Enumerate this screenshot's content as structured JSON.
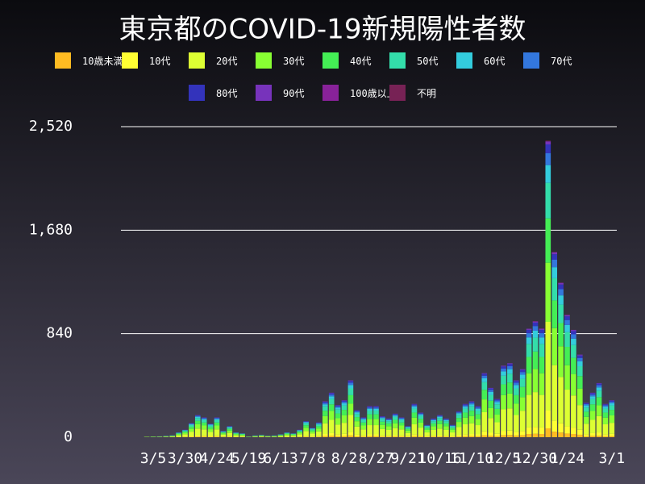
{
  "chart_data": {
    "type": "stacked_bar",
    "title": "東京都のCOVID-19新規陽性者数",
    "categories": [
      null,
      "3/5",
      null,
      null,
      null,
      null,
      "3/30",
      null,
      null,
      null,
      null,
      "4/24",
      null,
      null,
      null,
      null,
      "5/19",
      null,
      null,
      null,
      null,
      "6/13",
      null,
      null,
      null,
      null,
      "7/8",
      null,
      null,
      null,
      null,
      "8/2",
      null,
      null,
      null,
      null,
      "8/27",
      null,
      null,
      null,
      null,
      "9/21",
      null,
      null,
      null,
      null,
      "10/16",
      null,
      null,
      null,
      null,
      "11/10",
      null,
      null,
      null,
      null,
      "12/5",
      null,
      null,
      null,
      null,
      "12/30",
      null,
      null,
      null,
      null,
      "1/24",
      null,
      null,
      null,
      null,
      null,
      null,
      "3/1"
    ],
    "ylim": [
      0,
      2520
    ],
    "yticks": [
      0,
      840,
      {
        "value": 1680,
        "label": "1,680"
      },
      {
        "value": 2520,
        "label": "2,520"
      }
    ],
    "grid": true,
    "series": [
      {
        "name": "10歳未満",
        "color": "#ffbb22",
        "values": [
          0,
          0,
          0,
          0,
          0,
          1,
          2,
          3,
          5,
          5,
          3,
          5,
          2,
          3,
          1,
          1,
          0,
          0,
          1,
          0,
          0,
          1,
          1,
          1,
          2,
          4,
          2,
          4,
          9,
          11,
          8,
          9,
          14,
          7,
          5,
          8,
          8,
          5,
          5,
          6,
          5,
          3,
          8,
          6,
          3,
          5,
          5,
          5,
          3,
          6,
          8,
          9,
          8,
          16,
          12,
          9,
          17,
          18,
          14,
          17,
          26,
          28,
          26,
          72,
          45,
          38,
          30,
          26,
          20,
          8,
          11,
          13,
          8,
          9
        ]
      },
      {
        "name": "10代",
        "color": "#ffff33",
        "values": [
          0,
          0,
          1,
          1,
          1,
          2,
          4,
          7,
          11,
          10,
          7,
          10,
          3,
          5,
          2,
          2,
          0,
          1,
          1,
          1,
          1,
          1,
          2,
          2,
          4,
          8,
          5,
          7,
          17,
          22,
          16,
          18,
          28,
          13,
          10,
          15,
          15,
          10,
          9,
          11,
          10,
          5,
          16,
          12,
          6,
          9,
          11,
          9,
          6,
          13,
          16,
          17,
          15,
          31,
          24,
          19,
          35,
          36,
          28,
          33,
          53,
          56,
          53,
          144,
          90,
          75,
          59,
          52,
          40,
          17,
          22,
          26,
          16,
          18
        ]
      },
      {
        "name": "20代",
        "color": "#ddff33",
        "values": [
          2,
          2,
          2,
          3,
          5,
          12,
          18,
          35,
          54,
          48,
          33,
          48,
          15,
          27,
          12,
          9,
          2,
          4,
          6,
          4,
          4,
          7,
          12,
          9,
          18,
          39,
          23,
          36,
          87,
          108,
          78,
          90,
          138,
          66,
          48,
          75,
          75,
          51,
          45,
          57,
          48,
          27,
          81,
          60,
          30,
          45,
          54,
          45,
          30,
          63,
          81,
          87,
          75,
          156,
          120,
          93,
          174,
          180,
          138,
          165,
          264,
          282,
          264,
          720,
          450,
          375,
          297,
          261,
          201,
          84,
          108,
          132,
          81,
          90
        ]
      },
      {
        "name": "30代",
        "color": "#88ff33",
        "values": [
          1,
          2,
          1,
          2,
          3,
          8,
          12,
          23,
          36,
          32,
          22,
          32,
          10,
          18,
          8,
          6,
          1,
          3,
          4,
          2,
          3,
          5,
          8,
          6,
          12,
          26,
          15,
          24,
          58,
          72,
          52,
          60,
          92,
          44,
          32,
          50,
          50,
          34,
          30,
          38,
          32,
          18,
          54,
          40,
          20,
          30,
          36,
          30,
          20,
          42,
          54,
          58,
          50,
          104,
          80,
          62,
          116,
          120,
          92,
          110,
          176,
          188,
          176,
          480,
          300,
          250,
          198,
          174,
          134,
          56,
          72,
          88,
          54,
          60
        ]
      },
      {
        "name": "40代",
        "color": "#44ee55",
        "values": [
          1,
          1,
          1,
          2,
          2,
          6,
          9,
          17,
          27,
          24,
          17,
          24,
          8,
          14,
          6,
          5,
          1,
          2,
          3,
          2,
          2,
          4,
          6,
          5,
          9,
          20,
          11,
          18,
          44,
          54,
          39,
          45,
          69,
          33,
          24,
          38,
          38,
          26,
          23,
          29,
          24,
          14,
          41,
          30,
          15,
          23,
          27,
          23,
          15,
          32,
          41,
          44,
          38,
          78,
          60,
          47,
          87,
          90,
          69,
          83,
          132,
          141,
          132,
          360,
          225,
          188,
          149,
          131,
          101,
          42,
          54,
          66,
          41,
          45
        ]
      },
      {
        "name": "50代",
        "color": "#33ddaa",
        "values": [
          0,
          1,
          1,
          1,
          2,
          5,
          7,
          14,
          22,
          19,
          13,
          19,
          6,
          11,
          5,
          4,
          1,
          2,
          2,
          1,
          2,
          3,
          5,
          4,
          7,
          16,
          9,
          14,
          35,
          43,
          31,
          36,
          55,
          26,
          19,
          30,
          30,
          20,
          18,
          23,
          19,
          11,
          32,
          24,
          12,
          18,
          22,
          18,
          12,
          25,
          32,
          35,
          30,
          62,
          48,
          37,
          70,
          72,
          55,
          66,
          106,
          113,
          106,
          288,
          180,
          150,
          119,
          104,
          80,
          34,
          43,
          53,
          32,
          36
        ]
      },
      {
        "name": "60代",
        "color": "#33ccdd",
        "values": [
          0,
          0,
          1,
          1,
          1,
          2,
          4,
          7,
          11,
          10,
          7,
          10,
          3,
          5,
          2,
          2,
          0,
          1,
          1,
          1,
          1,
          1,
          2,
          2,
          4,
          8,
          5,
          7,
          17,
          22,
          16,
          18,
          28,
          13,
          10,
          15,
          15,
          10,
          9,
          11,
          10,
          5,
          16,
          12,
          6,
          9,
          11,
          9,
          6,
          13,
          16,
          17,
          15,
          31,
          24,
          19,
          35,
          36,
          28,
          33,
          53,
          56,
          53,
          144,
          90,
          75,
          59,
          52,
          40,
          17,
          22,
          26,
          16,
          18
        ]
      },
      {
        "name": "70代",
        "color": "#3377dd",
        "values": [
          0,
          0,
          0,
          1,
          1,
          2,
          2,
          5,
          7,
          6,
          4,
          6,
          2,
          4,
          2,
          1,
          0,
          1,
          1,
          0,
          1,
          1,
          2,
          1,
          2,
          5,
          3,
          5,
          12,
          14,
          10,
          12,
          18,
          9,
          6,
          10,
          10,
          7,
          6,
          8,
          6,
          4,
          11,
          8,
          4,
          6,
          7,
          6,
          4,
          8,
          11,
          12,
          10,
          21,
          16,
          12,
          23,
          24,
          18,
          22,
          35,
          38,
          35,
          96,
          60,
          50,
          40,
          35,
          27,
          11,
          14,
          18,
          11,
          12
        ]
      },
      {
        "name": "80代",
        "color": "#3333bb",
        "values": [
          0,
          0,
          0,
          0,
          0,
          1,
          2,
          3,
          5,
          5,
          3,
          5,
          2,
          3,
          1,
          1,
          0,
          0,
          1,
          0,
          0,
          1,
          1,
          1,
          2,
          4,
          2,
          4,
          9,
          11,
          8,
          9,
          14,
          7,
          5,
          8,
          8,
          5,
          5,
          6,
          5,
          3,
          8,
          6,
          3,
          5,
          5,
          5,
          3,
          6,
          8,
          9,
          8,
          16,
          12,
          9,
          17,
          18,
          14,
          17,
          26,
          28,
          26,
          72,
          45,
          38,
          30,
          26,
          20,
          8,
          11,
          13,
          8,
          9
        ]
      },
      {
        "name": "90代",
        "color": "#7733bb",
        "values": [
          0,
          0,
          0,
          0,
          0,
          0,
          1,
          1,
          2,
          2,
          1,
          2,
          1,
          1,
          0,
          0,
          0,
          0,
          0,
          0,
          0,
          0,
          0,
          0,
          1,
          1,
          1,
          1,
          3,
          4,
          3,
          3,
          5,
          2,
          2,
          3,
          3,
          2,
          2,
          2,
          2,
          1,
          3,
          2,
          1,
          2,
          2,
          2,
          1,
          2,
          3,
          3,
          3,
          5,
          4,
          3,
          6,
          6,
          5,
          6,
          9,
          9,
          9,
          24,
          15,
          13,
          10,
          9,
          7,
          3,
          4,
          4,
          3,
          3
        ]
      },
      {
        "name": "100歳以上",
        "color": "#882299",
        "values": [
          0,
          0,
          0,
          0,
          0,
          0,
          0,
          0,
          0,
          0,
          0,
          0,
          0,
          0,
          0,
          0,
          0,
          0,
          0,
          0,
          0,
          0,
          0,
          0,
          0,
          0,
          0,
          0,
          0,
          0,
          0,
          0,
          0,
          0,
          0,
          0,
          0,
          0,
          0,
          0,
          0,
          0,
          0,
          0,
          0,
          0,
          0,
          0,
          0,
          0,
          0,
          0,
          0,
          0,
          0,
          0,
          0,
          0,
          0,
          0,
          0,
          1,
          1,
          1,
          1,
          1,
          1,
          1,
          0,
          0,
          0,
          0,
          0,
          0
        ]
      },
      {
        "name": "不明",
        "color": "#772255",
        "values": [
          0,
          0,
          0,
          0,
          0,
          0,
          0,
          0,
          0,
          0,
          0,
          0,
          0,
          0,
          0,
          0,
          0,
          0,
          0,
          0,
          0,
          0,
          0,
          0,
          0,
          0,
          0,
          0,
          0,
          0,
          0,
          0,
          0,
          0,
          0,
          0,
          0,
          0,
          0,
          0,
          0,
          0,
          0,
          0,
          0,
          0,
          0,
          0,
          0,
          0,
          0,
          0,
          0,
          0,
          0,
          0,
          0,
          0,
          0,
          0,
          0,
          2,
          2,
          5,
          3,
          2,
          2,
          0,
          0,
          0,
          0,
          0,
          0,
          0
        ]
      }
    ]
  }
}
